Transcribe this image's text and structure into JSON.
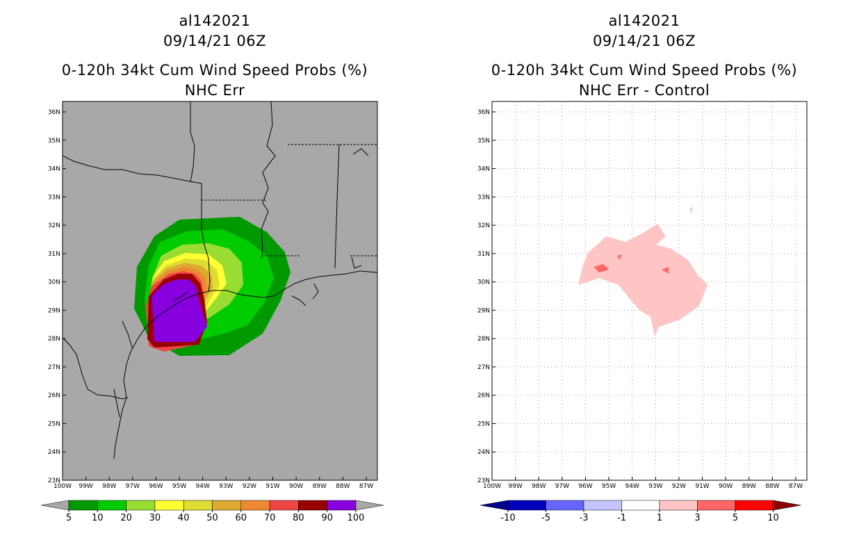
{
  "left": {
    "title_line1": "al142021",
    "title_line2": "09/14/21 06Z",
    "title_line3": "0-120h 34kt Cum Wind Speed Probs (%)",
    "title_line4": "NHC Err",
    "background_color": "#a8a8a8",
    "contour_colors": [
      "#009900",
      "#00cc00",
      "#99dd33",
      "#ffff33",
      "#dddd33",
      "#ddaa33",
      "#ee8833",
      "#ee4444",
      "#990000",
      "#8800dd"
    ],
    "colorbar": {
      "labels": [
        "5",
        "10",
        "20",
        "30",
        "40",
        "50",
        "60",
        "70",
        "80",
        "90",
        "100"
      ],
      "colors": [
        "#009900",
        "#00cc00",
        "#99dd33",
        "#ffff33",
        "#dddd33",
        "#ddaa33",
        "#ee8833",
        "#ee4444",
        "#990000",
        "#8800dd"
      ],
      "under_color": "#a8a8a8",
      "over_color": "#a8a8a8"
    }
  },
  "right": {
    "title_line1": "al142021",
    "title_line2": "09/14/21 06Z",
    "title_line3": "0-120h 34kt Cum Wind Speed Probs (%)",
    "title_line4": "NHC Err - Control",
    "background_color": "#ffffff",
    "contour_colors": [
      "#ffc4c4",
      "#ff6666"
    ],
    "colorbar": {
      "labels": [
        "-10",
        "-5",
        "-3",
        "-1",
        "1",
        "3",
        "5",
        "10"
      ],
      "colors": [
        "#0000bb",
        "#6666ff",
        "#c4c4ff",
        "#ffffff",
        "#ffc4c4",
        "#ff6666",
        "#ff0000"
      ],
      "under_color": "#000088",
      "over_color": "#880000"
    }
  },
  "axes": {
    "lat_labels": [
      "23N",
      "24N",
      "25N",
      "26N",
      "27N",
      "28N",
      "29N",
      "30N",
      "31N",
      "32N",
      "33N",
      "34N",
      "35N",
      "36N"
    ],
    "lon_labels": [
      "100W",
      "99W",
      "98W",
      "97W",
      "96W",
      "95W",
      "94W",
      "93W",
      "92W",
      "91W",
      "90W",
      "89W",
      "88W",
      "87W"
    ]
  }
}
